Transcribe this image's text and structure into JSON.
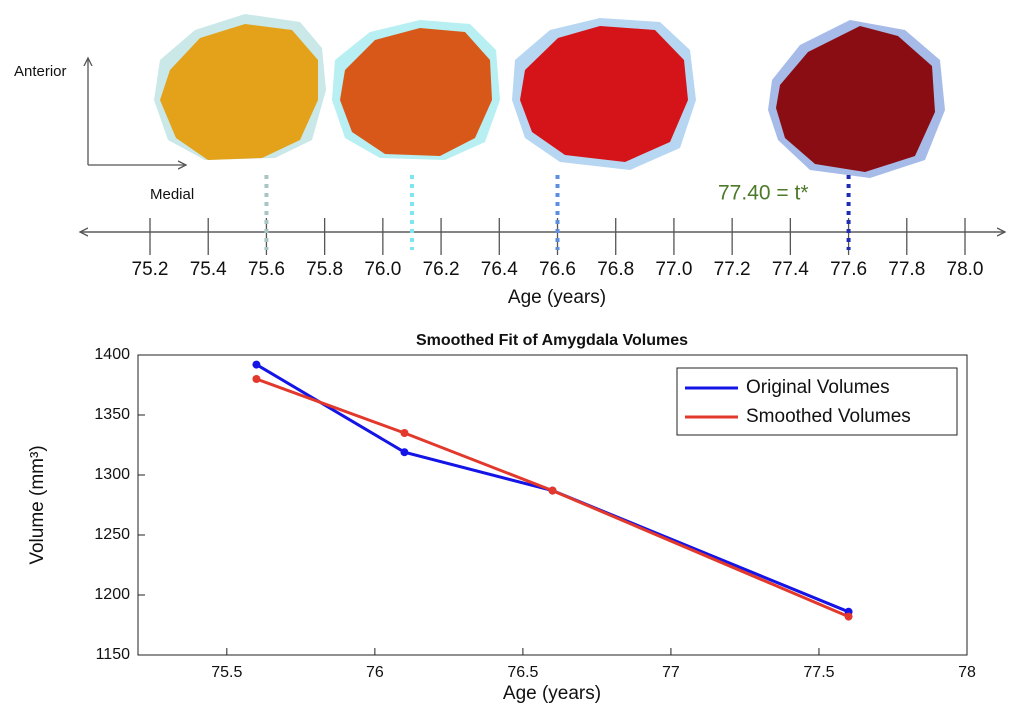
{
  "chart_data": [
    {
      "type": "timeline",
      "vertical_axis_label": "Anterior",
      "horizontal_axis_label": "Medial",
      "annotation": "77.40 = t*",
      "xlabel": "Age (years)",
      "xlim": [
        75.2,
        78.0
      ],
      "xticks": [
        75.2,
        75.4,
        75.6,
        75.8,
        {
          "value": 76,
          "label": "76.0"
        },
        76.2,
        76.4,
        76.6,
        76.8,
        {
          "value": 77,
          "label": "77.0"
        },
        77.2,
        77.4,
        77.6,
        77.8,
        {
          "value": 78,
          "label": "78.0"
        }
      ],
      "markers": {
        "x": [
          75.6,
          76.1,
          76.6,
          77.6
        ],
        "colors": [
          "#a8c4c4",
          "#7ee6f0",
          "#5b8fe0",
          "#1c2db4"
        ]
      }
    },
    {
      "type": "line",
      "title": "Smoothed Fit of Amygdala Volumes",
      "xlabel": "Age (years)",
      "ylabel": "Volume (mm³)",
      "x": [
        75.6,
        76.1,
        76.6,
        77.6
      ],
      "series": [
        {
          "name": "Original Volumes",
          "color": "#1414e6",
          "values": [
            1392,
            1319,
            1287,
            1186
          ]
        },
        {
          "name": "Smoothed Volumes",
          "color": "#e2392c",
          "values": [
            1380,
            1335,
            1287,
            1182
          ]
        }
      ],
      "xlim": [
        75.2,
        78
      ],
      "xticks": [
        75.5,
        76,
        76.5,
        77,
        77.5,
        78
      ],
      "ylim": [
        1150,
        1400
      ],
      "yticks": [
        1150,
        1200,
        1250,
        1300,
        1350,
        1400
      ],
      "legend": "top-right"
    }
  ]
}
